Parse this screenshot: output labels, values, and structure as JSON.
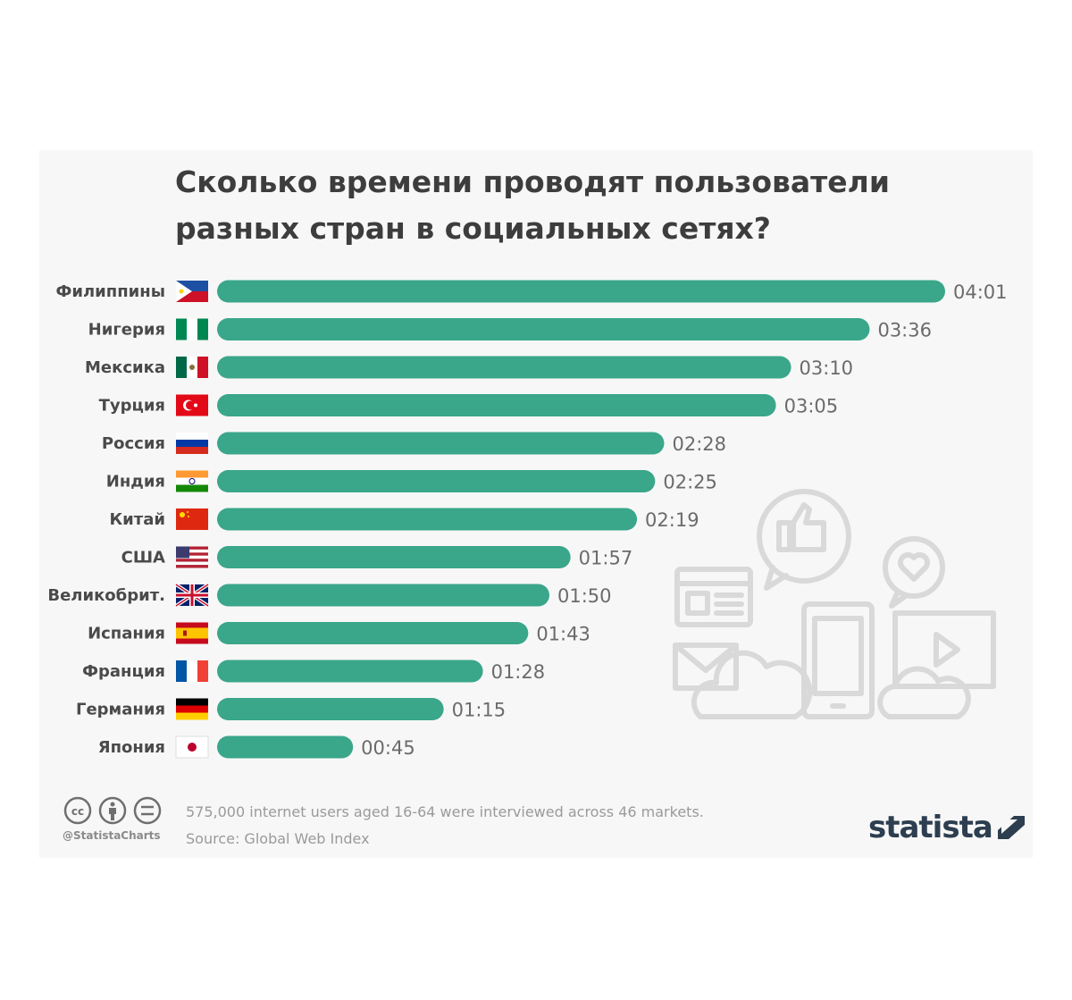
{
  "chart_data": {
    "type": "bar",
    "orientation": "horizontal",
    "title": "Сколько времени проводят пользователи разных стран в социальных сетях?",
    "categories": [
      "Филиппины",
      "Нигерия",
      "Мексика",
      "Турция",
      "Россия",
      "Индия",
      "Китай",
      "США",
      "Великобрит.",
      "Испания",
      "Франция",
      "Германия",
      "Япония"
    ],
    "values": [
      241,
      216,
      190,
      185,
      148,
      145,
      139,
      117,
      110,
      103,
      88,
      75,
      45
    ],
    "value_labels": [
      "04:01",
      "03:36",
      "03:10",
      "03:05",
      "02:28",
      "02:25",
      "02:19",
      "01:57",
      "01:50",
      "01:43",
      "01:28",
      "01:15",
      "00:45"
    ],
    "flags": [
      "flag-philippines",
      "flag-nigeria",
      "flag-mexico",
      "flag-turkey",
      "flag-russia",
      "flag-india",
      "flag-china",
      "flag-usa",
      "flag-uk",
      "flag-spain",
      "flag-france",
      "flag-germany",
      "flag-japan"
    ],
    "xlim": [
      0,
      241
    ],
    "unit": "hh:mm per day",
    "bar_color": "#3aa68a"
  },
  "footer": {
    "handle": "@StatistaCharts",
    "note": "575,000 internet users aged 16-64 were interviewed across 46 markets.",
    "source": "Source: Global Web Index",
    "logo": "statista"
  },
  "icons": [
    "cc-icon",
    "attribution-icon",
    "no-derivatives-icon",
    "thumbs-up-icon",
    "heart-icon",
    "browser-window-icon",
    "envelope-icon",
    "cloud-icon",
    "tablet-icon",
    "video-player-icon",
    "statista-logo-icon"
  ]
}
